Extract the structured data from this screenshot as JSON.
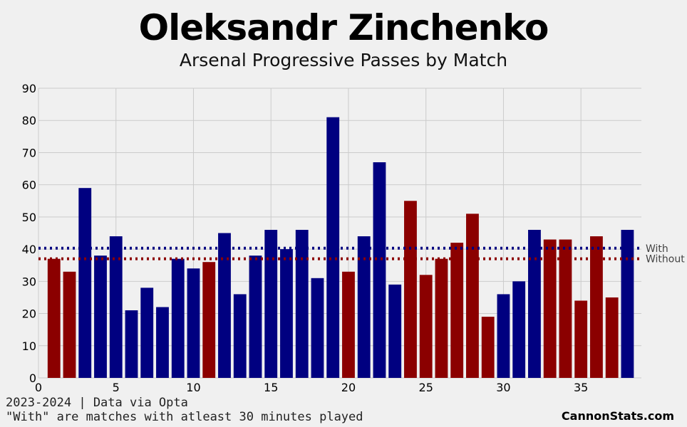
{
  "title": "Oleksandr Zinchenko",
  "subtitle": "Arsenal Progressive Passes by Match",
  "footer": {
    "line1": "2023-2024 | Data via Opta",
    "line2": "\"With\" are matches with atleast 30 minutes played",
    "brand": "CannonStats.com"
  },
  "colors": {
    "with": "#000080",
    "without": "#8b0000",
    "background": "#f0f0f0",
    "grid": "#cbcbcb"
  },
  "chart_data": {
    "type": "bar",
    "x": [
      1,
      2,
      3,
      4,
      5,
      6,
      7,
      8,
      9,
      10,
      11,
      12,
      13,
      14,
      15,
      16,
      17,
      18,
      19,
      20,
      21,
      22,
      23,
      24,
      25,
      26,
      27,
      28,
      29,
      30,
      31,
      32,
      33,
      34,
      35,
      36,
      37,
      38
    ],
    "values": [
      37,
      33,
      59,
      38,
      44,
      21,
      28,
      22,
      37,
      34,
      36,
      45,
      26,
      38,
      46,
      40,
      46,
      31,
      81,
      33,
      44,
      67,
      29,
      55,
      32,
      37,
      42,
      51,
      19,
      26,
      30,
      46,
      43,
      43,
      24,
      44,
      25,
      46
    ],
    "group": [
      "without",
      "without",
      "with",
      "with",
      "with",
      "with",
      "with",
      "with",
      "with",
      "with",
      "without",
      "with",
      "with",
      "with",
      "with",
      "with",
      "with",
      "with",
      "with",
      "without",
      "with",
      "with",
      "with",
      "without",
      "without",
      "without",
      "without",
      "without",
      "without",
      "with",
      "with",
      "with",
      "without",
      "without",
      "without",
      "without",
      "without",
      "with"
    ],
    "reference_lines": [
      {
        "label": "With",
        "value": 40.3,
        "color": "#000080"
      },
      {
        "label": "Without",
        "value": 37.0,
        "color": "#8b0000"
      }
    ],
    "xticks": [
      0,
      5,
      10,
      15,
      20,
      25,
      30,
      35
    ],
    "yticks": [
      0,
      10,
      20,
      30,
      40,
      50,
      60,
      70,
      80,
      90
    ],
    "xlim": [
      0,
      38.9
    ],
    "ylim": [
      0,
      90
    ],
    "grid": true
  }
}
